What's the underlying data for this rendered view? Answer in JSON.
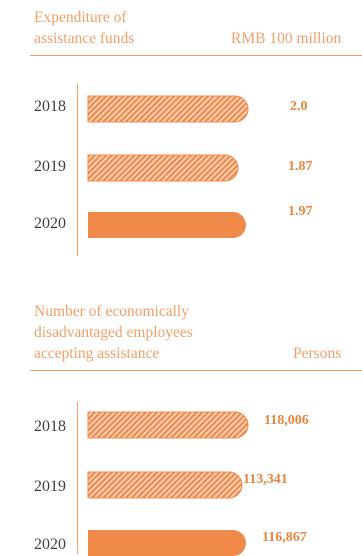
{
  "colors": {
    "accent": "#f0a06a",
    "bar": "#f08a4b",
    "value": "#e8853f",
    "text": "#404040"
  },
  "chart_data": [
    {
      "type": "bar",
      "orientation": "horizontal",
      "title": "Expenditure of assistance funds",
      "title_lines": [
        "Expenditure of",
        "assistance funds"
      ],
      "unit": "RMB 100 million",
      "categories": [
        "2018",
        "2019",
        "2020"
      ],
      "values": [
        2.0,
        1.87,
        1.97
      ],
      "value_labels": [
        "2.0",
        "1.87",
        "1.97"
      ],
      "bar_fill": [
        "hatched",
        "hatched",
        "solid"
      ]
    },
    {
      "type": "bar",
      "orientation": "horizontal",
      "title": "Number of economically disadvantaged employees accepting assistance",
      "title_lines": [
        "Number of economically",
        "disadvantaged employees",
        "accepting assistance"
      ],
      "unit": "Persons",
      "categories": [
        "2018",
        "2019",
        "2020"
      ],
      "values": [
        118006,
        113341,
        116867
      ],
      "value_labels": [
        "118,006",
        "113,341",
        "116,867"
      ],
      "bar_fill": [
        "hatched",
        "hatched",
        "solid"
      ]
    }
  ]
}
